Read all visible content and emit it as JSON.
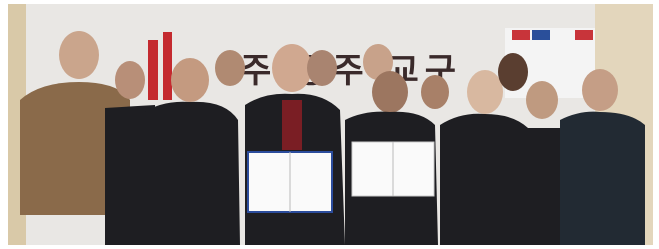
{
  "banner": {
    "text": "주 광주 교구"
  }
}
